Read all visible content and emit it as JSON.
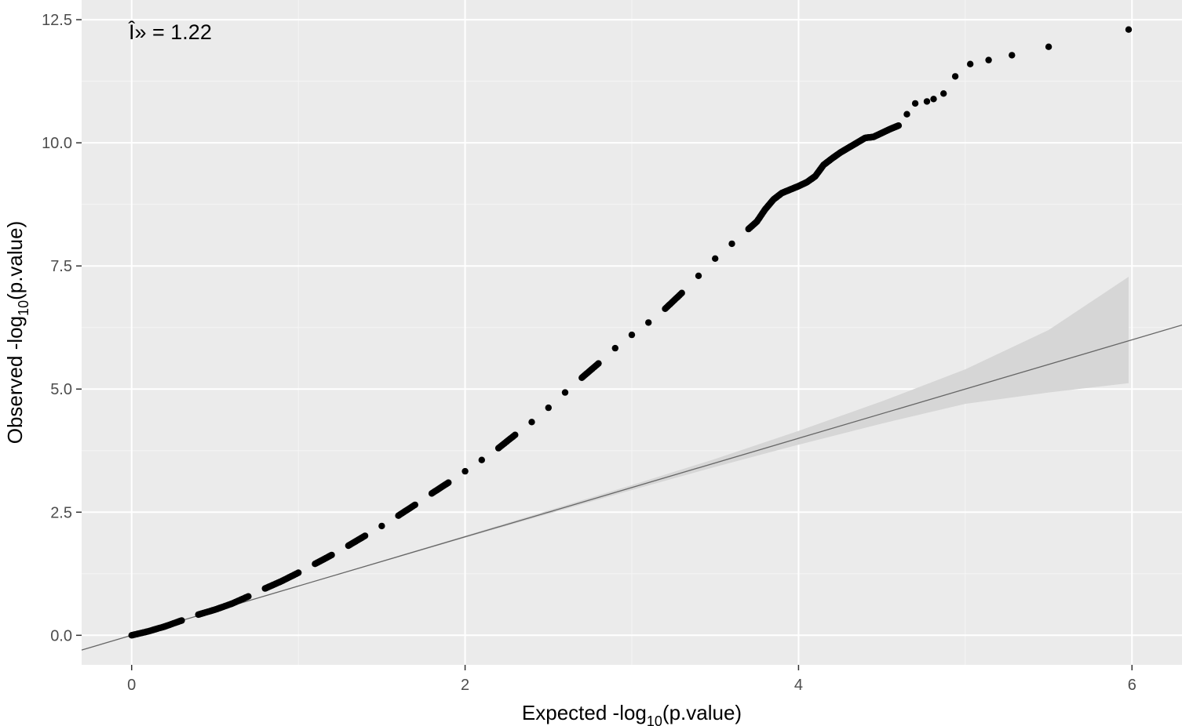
{
  "chart_data": {
    "type": "scatter",
    "annotation": "Î» = 1.22",
    "xlabel": {
      "pre": "Expected -log",
      "sub": "10",
      "post": "(p.value)"
    },
    "ylabel": {
      "pre": "Observed -log",
      "sub": "10",
      "post": "(p.value)"
    },
    "xlim": [
      -0.3,
      6.3
    ],
    "ylim": [
      -0.6,
      12.9
    ],
    "x_ticks": [
      0,
      2,
      4,
      6
    ],
    "x_tick_labels": [
      "0",
      "2",
      "4",
      "6"
    ],
    "y_ticks": [
      0,
      2.5,
      5,
      7.5,
      10,
      12.5
    ],
    "y_tick_labels": [
      "0.0",
      "2.5",
      "5.0",
      "7.5",
      "10.0",
      "12.5"
    ],
    "grid": true,
    "background": "#ebebeb",
    "point_color": "#000000",
    "reference_line": {
      "slope": 1,
      "intercept": 0,
      "color": "#666666"
    },
    "confidence_band": {
      "color": "#d6d6d6",
      "x": [
        0.5,
        2.0,
        3.0,
        3.5,
        4.0,
        4.5,
        5.0,
        5.5,
        5.98
      ],
      "lower": [
        0.5,
        1.98,
        2.95,
        3.42,
        3.87,
        4.3,
        4.7,
        4.93,
        5.12
      ],
      "upper": [
        0.5,
        2.02,
        3.05,
        3.58,
        4.15,
        4.75,
        5.4,
        6.2,
        7.28
      ]
    },
    "series": [
      {
        "x": [
          0.0,
          0.1,
          0.2,
          0.3,
          0.4,
          0.5,
          0.6,
          0.7,
          0.8,
          0.9,
          1.0,
          1.1,
          1.2,
          1.3,
          1.4,
          1.5,
          1.6,
          1.7,
          1.8,
          1.9,
          2.0,
          2.1,
          2.2,
          2.3,
          2.4,
          2.5,
          2.6,
          2.7,
          2.8,
          2.9,
          3.0,
          3.1,
          3.2,
          3.3,
          3.4,
          3.5,
          3.6,
          3.7,
          3.75,
          3.8,
          3.85,
          3.9,
          3.95,
          4.0,
          4.05,
          4.1,
          4.15,
          4.2,
          4.25,
          4.3,
          4.35,
          4.4,
          4.45,
          4.5,
          4.55,
          4.6,
          4.65,
          4.7,
          4.77,
          4.81,
          4.87,
          4.94,
          5.03,
          5.14,
          5.28,
          5.5,
          5.98
        ],
        "y": [
          0.0,
          0.08,
          0.18,
          0.3,
          0.42,
          0.52,
          0.64,
          0.79,
          0.95,
          1.1,
          1.27,
          1.45,
          1.63,
          1.82,
          2.02,
          2.22,
          2.43,
          2.65,
          2.88,
          3.1,
          3.33,
          3.56,
          3.8,
          4.07,
          4.33,
          4.62,
          4.93,
          5.23,
          5.52,
          5.83,
          6.1,
          6.35,
          6.63,
          6.95,
          7.3,
          7.65,
          7.95,
          8.25,
          8.4,
          8.65,
          8.85,
          8.98,
          9.05,
          9.12,
          9.2,
          9.32,
          9.55,
          9.68,
          9.8,
          9.9,
          10.0,
          10.1,
          10.12,
          10.2,
          10.28,
          10.35,
          10.58,
          10.8,
          10.84,
          10.89,
          11.0,
          11.35,
          11.6,
          11.68,
          11.78,
          11.95,
          12.3
        ]
      }
    ]
  }
}
